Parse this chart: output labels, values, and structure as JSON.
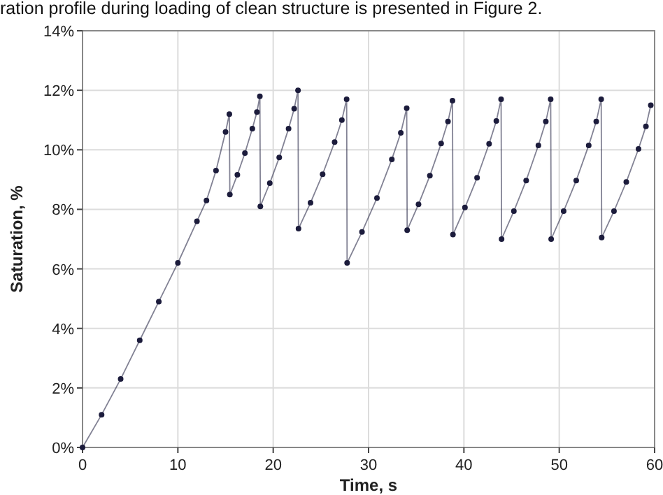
{
  "chart_data": {
    "type": "line",
    "xlabel": "Time, s",
    "ylabel": "Saturation, %",
    "annotations": [
      "ration profile during loading of clean structure is presented in Figure 2."
    ],
    "xlim": [
      0,
      60
    ],
    "xticks": [
      0,
      10,
      20,
      30,
      40,
      50,
      60
    ],
    "ylim": [
      0,
      14
    ],
    "yticks": [
      {
        "value": 0,
        "label": "0%"
      },
      {
        "value": 2,
        "label": "2%"
      },
      {
        "value": 4,
        "label": "4%"
      },
      {
        "value": 6,
        "label": "6%"
      },
      {
        "value": 8,
        "label": "8%"
      },
      {
        "value": 10,
        "label": "10%"
      },
      {
        "value": 12,
        "label": "12%"
      },
      {
        "value": 14,
        "label": "14%"
      }
    ],
    "grid": true,
    "marker": "circle",
    "line_style": "solid",
    "series": [
      {
        "color": "#1c1c3c",
        "x": [
          0,
          2,
          4,
          6,
          8,
          10,
          12,
          13,
          14,
          15,
          15.4,
          15.45,
          16.24,
          17.03,
          17.81,
          18.29,
          18.6,
          18.65,
          19.64,
          20.63,
          21.61,
          22.2,
          22.6,
          22.65,
          23.91,
          25.18,
          26.44,
          27.2,
          27.7,
          27.75,
          29.31,
          30.88,
          32.44,
          33.38,
          34.0,
          34.05,
          35.24,
          36.43,
          37.61,
          38.33,
          38.8,
          38.85,
          40.11,
          41.38,
          42.64,
          43.4,
          43.9,
          43.95,
          45.24,
          46.53,
          47.81,
          48.59,
          49.1,
          49.15,
          50.46,
          51.78,
          53.09,
          53.88,
          54.4,
          54.45,
          55.74,
          57.03,
          58.31,
          59.09,
          59.6
        ],
        "values": [
          0,
          1.1,
          2.3,
          3.6,
          4.9,
          6.2,
          7.6,
          8.3,
          9.3,
          10.6,
          11.2,
          8.5,
          9.16,
          9.89,
          10.71,
          11.27,
          11.8,
          8.1,
          8.88,
          9.74,
          10.71,
          11.38,
          12.0,
          7.35,
          8.22,
          9.18,
          10.26,
          11.0,
          11.7,
          6.2,
          7.24,
          8.38,
          9.68,
          10.57,
          11.4,
          7.3,
          8.17,
          9.13,
          10.21,
          10.95,
          11.65,
          7.15,
          8.06,
          9.06,
          10.2,
          10.97,
          11.7,
          7.0,
          7.94,
          8.97,
          10.15,
          10.95,
          11.7,
          7.0,
          7.94,
          8.97,
          10.15,
          10.95,
          11.7,
          7.05,
          7.94,
          8.92,
          10.03,
          10.79,
          11.5
        ]
      }
    ]
  }
}
